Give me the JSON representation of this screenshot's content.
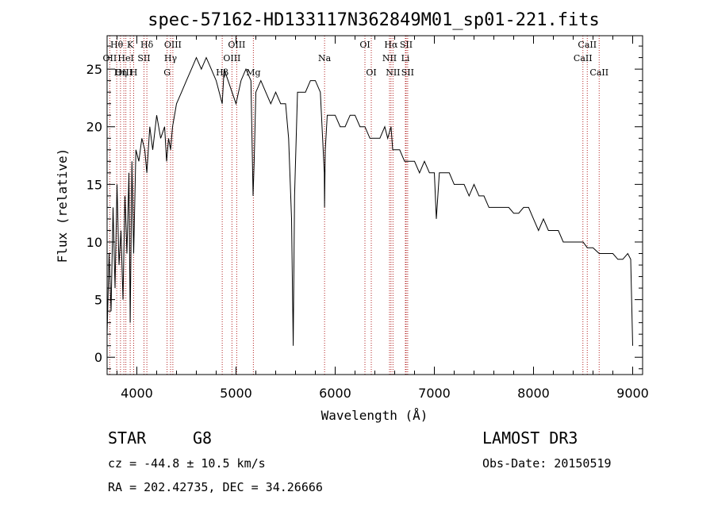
{
  "chart_data": {
    "type": "line",
    "title": "spec-57162-HD133117N362849M01_sp01-221.fits",
    "xlabel": "Wavelength (Å)",
    "ylabel": "Flux (relative)",
    "xlim": [
      3700,
      9100
    ],
    "ylim": [
      -1.5,
      27.9
    ],
    "xticks": [
      4000,
      5000,
      6000,
      7000,
      8000,
      9000
    ],
    "yticks": [
      0,
      5,
      10,
      15,
      20,
      25
    ],
    "grid": false,
    "series": [
      {
        "x": [
          3700,
          3720,
          3740,
          3760,
          3780,
          3800,
          3820,
          3840,
          3860,
          3880,
          3900,
          3920,
          3933,
          3950,
          3968,
          3990,
          4020,
          4050,
          4080,
          4101,
          4130,
          4160,
          4200,
          4240,
          4280,
          4300,
          4320,
          4340,
          4360,
          4400,
          4450,
          4500,
          4550,
          4600,
          4650,
          4700,
          4750,
          4800,
          4861,
          4880,
          4920,
          4960,
          5000,
          5050,
          5100,
          5150,
          5172,
          5183,
          5200,
          5250,
          5300,
          5350,
          5400,
          5450,
          5500,
          5530,
          5560,
          5577,
          5590,
          5620,
          5650,
          5700,
          5750,
          5800,
          5850,
          5890,
          5893,
          5900,
          5920,
          5950,
          6000,
          6050,
          6100,
          6150,
          6200,
          6250,
          6300,
          6350,
          6400,
          6450,
          6500,
          6530,
          6563,
          6580,
          6600,
          6650,
          6700,
          6750,
          6800,
          6850,
          6900,
          6950,
          7000,
          7020,
          7050,
          7100,
          7150,
          7200,
          7250,
          7300,
          7350,
          7400,
          7450,
          7500,
          7550,
          7600,
          7650,
          7700,
          7750,
          7800,
          7850,
          7900,
          7950,
          8000,
          8050,
          8100,
          8150,
          8200,
          8250,
          8300,
          8350,
          8400,
          8450,
          8500,
          8542,
          8600,
          8662,
          8700,
          8750,
          8800,
          8850,
          8900,
          8950,
          8980,
          9000
        ],
        "y": [
          2,
          9,
          4,
          13,
          6,
          15,
          8,
          11,
          5,
          14,
          9,
          16,
          3,
          17,
          9,
          18,
          17,
          19,
          18,
          16,
          20,
          18,
          21,
          19,
          20,
          17,
          19,
          18,
          20,
          22,
          23,
          24,
          25,
          26,
          25,
          26,
          25,
          24,
          22,
          25,
          24,
          23,
          22,
          24,
          25,
          24,
          14,
          17,
          23,
          24,
          23,
          22,
          23,
          22,
          22,
          19,
          12,
          1,
          14,
          23,
          23,
          23,
          24,
          24,
          23,
          16,
          13,
          18,
          21,
          21,
          21,
          20,
          20,
          21,
          21,
          20,
          20,
          19,
          19,
          19,
          20,
          19,
          20,
          18,
          18,
          18,
          17,
          17,
          17,
          16,
          17,
          16,
          16,
          12,
          16,
          16,
          16,
          15,
          15,
          15,
          14,
          15,
          14,
          14,
          13,
          13,
          13,
          13,
          13,
          12.5,
          12.5,
          13,
          13,
          12,
          11,
          12,
          11,
          11,
          11,
          10,
          10,
          10,
          10,
          10,
          9.5,
          9.5,
          9,
          9,
          9,
          9,
          8.5,
          8.5,
          9,
          8.5,
          1
        ]
      }
    ],
    "lines": [
      {
        "name": "Hθ",
        "x": 3797,
        "row": 0
      },
      {
        "name": "OII",
        "x": 3727,
        "row": 1
      },
      {
        "name": "OIII",
        "x": 3869,
        "row": 2
      },
      {
        "name": "K",
        "x": 3933,
        "row": 0
      },
      {
        "name": "HeI",
        "x": 3889,
        "row": 1
      },
      {
        "name": "Hη",
        "x": 3835,
        "row": 2
      },
      {
        "name": "Hδ",
        "x": 4101,
        "row": 0
      },
      {
        "name": "SII",
        "x": 4072,
        "row": 1
      },
      {
        "name": "H",
        "x": 3968,
        "row": 2
      },
      {
        "name": "OIII",
        "x": 4363,
        "row": 0
      },
      {
        "name": "Hγ",
        "x": 4340,
        "row": 1
      },
      {
        "name": "G",
        "x": 4305,
        "row": 2
      },
      {
        "name": "OIII",
        "x": 5007,
        "row": 0
      },
      {
        "name": "OIII",
        "x": 4959,
        "row": 1
      },
      {
        "name": "Hβ",
        "x": 4861,
        "row": 2
      },
      {
        "name": "Mg",
        "x": 5175,
        "row": 2
      },
      {
        "name": "Na",
        "x": 5893,
        "row": 1
      },
      {
        "name": "OI",
        "x": 6300,
        "row": 0
      },
      {
        "name": "OI",
        "x": 6364,
        "row": 2
      },
      {
        "name": "Hα",
        "x": 6563,
        "row": 0
      },
      {
        "name": "NII",
        "x": 6548,
        "row": 1
      },
      {
        "name": "NII",
        "x": 6583,
        "row": 2
      },
      {
        "name": "SII",
        "x": 6716,
        "row": 0
      },
      {
        "name": "Li",
        "x": 6708,
        "row": 1
      },
      {
        "name": "SII",
        "x": 6731,
        "row": 2
      },
      {
        "name": "CaII",
        "x": 8542,
        "row": 0
      },
      {
        "name": "CaII",
        "x": 8498,
        "row": 1
      },
      {
        "name": "CaII",
        "x": 8662,
        "row": 2
      }
    ]
  },
  "info": {
    "class": "STAR",
    "subclass": "G8",
    "survey": "LAMOST DR3",
    "cz": "cz = -44.8 ± 10.5 km/s",
    "obsdate": "Obs-Date: 20150519",
    "radec": "RA = 202.42735, DEC =  34.26666"
  },
  "colors": {
    "line_marker": "#b22222",
    "spectrum": "#000000"
  }
}
